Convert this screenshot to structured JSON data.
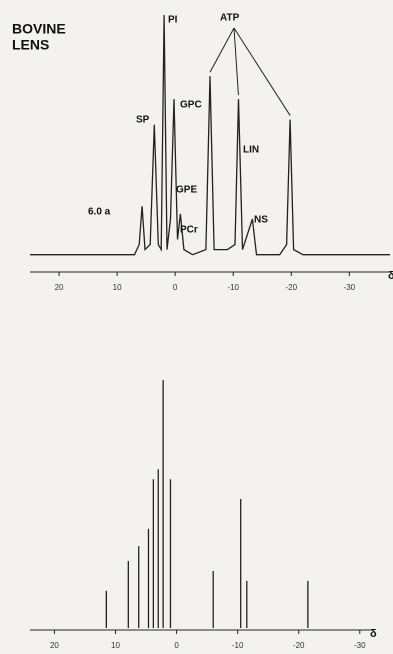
{
  "chart_data": [
    {
      "type": "line",
      "title": "BOVINE",
      "subtitle": "LENS",
      "x_label": "δ",
      "annotations": [
        "SP",
        "PI",
        "ATP",
        "GPC",
        "GPE",
        "PCr",
        "LIN",
        "NS",
        "6.0 a"
      ],
      "x": [
        25,
        10,
        7,
        6.2,
        5.7,
        5.2,
        4.3,
        3.6,
        2.9,
        2.4,
        1.9,
        1.4,
        0.8,
        0.2,
        -0.4,
        -0.9,
        -1.5,
        -3,
        -5.3,
        -6,
        -6.7,
        -9,
        -10.3,
        -10.9,
        -11.6,
        -13.3,
        -14,
        -18,
        -19.2,
        -19.8,
        -20.4,
        -22,
        -37
      ],
      "series": [
        {
          "name": "spectrum",
          "color": "#222",
          "values": [
            6,
            6,
            6,
            10,
            25,
            8,
            10,
            57,
            10,
            8,
            100,
            8,
            20,
            67,
            12,
            22,
            8,
            6,
            8,
            76,
            8,
            8,
            10,
            67,
            8,
            20,
            6,
            6,
            10,
            59,
            8,
            6,
            6
          ]
        }
      ],
      "xlim": [
        25,
        -37
      ],
      "xticks": [
        20,
        10,
        0,
        -10,
        -20,
        -30
      ],
      "ylim": [
        0,
        100
      ]
    },
    {
      "type": "stem",
      "x_label": "δ",
      "x": [
        11.5,
        7.9,
        6.2,
        4.6,
        3.8,
        3.0,
        2.2,
        1.0,
        -6.0,
        -10.5,
        -11.5,
        -21.5
      ],
      "values": [
        15,
        27,
        33,
        40,
        60,
        64,
        100,
        60,
        23,
        52,
        19,
        19
      ],
      "color": "#222",
      "xlim": [
        24,
        -32
      ],
      "xticks": [
        20,
        10,
        0,
        -10,
        -20,
        -30
      ],
      "ylim": [
        0,
        100
      ]
    }
  ]
}
